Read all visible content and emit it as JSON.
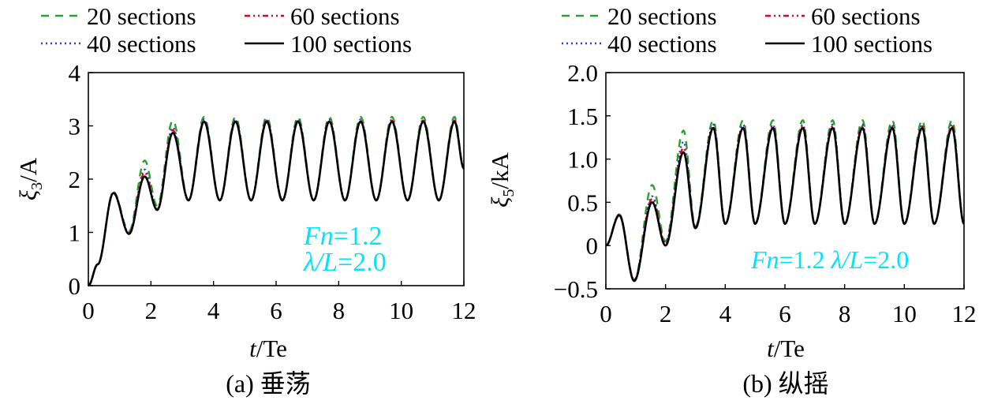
{
  "legend": [
    {
      "label": "20 sections",
      "color": "#2ca02c",
      "dash": "10,8"
    },
    {
      "label": "60 sections",
      "color": "#e8001c",
      "dash": "7,4,2,4,2,4"
    },
    {
      "label": "40 sections",
      "color": "#1f3fd8",
      "dash": "2,4"
    },
    {
      "label": "100 sections",
      "color": "#000000",
      "dash": ""
    }
  ],
  "annotation_color": "#00e5ff",
  "chart_data": [
    {
      "type": "line",
      "caption": "(a) 垂荡",
      "xlabel_italic": "t",
      "xlabel_rest": "/Te",
      "ylabel_sym": "ξ",
      "ylabel_sub": "3",
      "ylabel_rest": "/A",
      "xlim": [
        0,
        12
      ],
      "ylim": [
        0,
        4
      ],
      "xticks": [
        "0",
        "2",
        "4",
        "6",
        "8",
        "10",
        "12"
      ],
      "yticks": [
        "0",
        "1",
        "2",
        "3",
        "4"
      ],
      "annotation_lines": [
        [
          {
            "t": "Fn",
            "i": true
          },
          {
            "t": "=1.2",
            "i": false
          }
        ],
        [
          {
            "t": "λ/L",
            "i": true
          },
          {
            "t": "=2.0",
            "i": false
          }
        ]
      ],
      "series": [
        {
          "name": "20 sections",
          "x": [
            0,
            0.3,
            0.8,
            1.3,
            1.8,
            2.2,
            2.7,
            3.2,
            3.7,
            4.2,
            4.7,
            5.2,
            5.7,
            6.2,
            6.7,
            7.2,
            7.7,
            8.2,
            8.7,
            9.2,
            9.7,
            10.2,
            10.7,
            11.2,
            11.7,
            12
          ],
          "y": [
            0,
            0.4,
            1.76,
            1.02,
            2.35,
            1.5,
            3.1,
            1.6,
            3.17,
            1.6,
            3.17,
            1.6,
            3.17,
            1.6,
            3.17,
            1.6,
            3.17,
            1.6,
            3.17,
            1.6,
            3.17,
            1.6,
            3.17,
            1.6,
            3.17,
            2.2
          ]
        },
        {
          "name": "40 sections",
          "x": [
            0,
            0.3,
            0.8,
            1.3,
            1.8,
            2.2,
            2.7,
            3.2,
            3.7,
            4.2,
            4.7,
            5.2,
            5.7,
            6.2,
            6.7,
            7.2,
            7.7,
            8.2,
            8.7,
            9.2,
            9.7,
            10.2,
            10.7,
            11.2,
            11.7,
            12
          ],
          "y": [
            0,
            0.4,
            1.75,
            0.99,
            2.18,
            1.44,
            2.97,
            1.6,
            3.12,
            1.6,
            3.12,
            1.6,
            3.12,
            1.6,
            3.12,
            1.6,
            3.12,
            1.6,
            3.12,
            1.6,
            3.12,
            1.6,
            3.12,
            1.6,
            3.12,
            2.2
          ]
        },
        {
          "name": "60 sections",
          "x": [
            0,
            0.3,
            0.8,
            1.3,
            1.8,
            2.2,
            2.7,
            3.2,
            3.7,
            4.2,
            4.7,
            5.2,
            5.7,
            6.2,
            6.7,
            7.2,
            7.7,
            8.2,
            8.7,
            9.2,
            9.7,
            10.2,
            10.7,
            11.2,
            11.7,
            12
          ],
          "y": [
            0,
            0.4,
            1.75,
            0.98,
            2.12,
            1.43,
            2.92,
            1.6,
            3.1,
            1.6,
            3.1,
            1.6,
            3.1,
            1.6,
            3.1,
            1.6,
            3.1,
            1.6,
            3.1,
            1.6,
            3.1,
            1.6,
            3.1,
            1.6,
            3.1,
            2.2
          ]
        },
        {
          "name": "100 sections",
          "x": [
            0,
            0.3,
            0.8,
            1.3,
            1.8,
            2.2,
            2.7,
            3.2,
            3.7,
            4.2,
            4.7,
            5.2,
            5.7,
            6.2,
            6.7,
            7.2,
            7.7,
            8.2,
            8.7,
            9.2,
            9.7,
            10.2,
            10.7,
            11.2,
            11.7,
            12
          ],
          "y": [
            0,
            0.4,
            1.74,
            0.97,
            2.05,
            1.42,
            2.87,
            1.6,
            3.08,
            1.6,
            3.08,
            1.6,
            3.08,
            1.6,
            3.08,
            1.6,
            3.08,
            1.6,
            3.08,
            1.6,
            3.08,
            1.6,
            3.08,
            1.6,
            3.08,
            2.2
          ]
        }
      ]
    },
    {
      "type": "line",
      "caption": "(b) 纵摇",
      "xlabel_italic": "t",
      "xlabel_rest": "/Te",
      "ylabel_sym": "ξ",
      "ylabel_sub": "5",
      "ylabel_rest": "/kA",
      "xlim": [
        0,
        12
      ],
      "ylim": [
        -0.5,
        2.0
      ],
      "xticks": [
        "0",
        "2",
        "4",
        "6",
        "8",
        "10",
        "12"
      ],
      "yticks": [
        "−0.5",
        "0",
        "0.5",
        "1.0",
        "1.5",
        "2.0"
      ],
      "annotation_lines": [
        [
          {
            "t": "Fn",
            "i": true
          },
          {
            "t": "=1.2  ",
            "i": false
          },
          {
            "t": "λ/L",
            "i": true
          },
          {
            "t": "=2.0",
            "i": false
          }
        ]
      ],
      "series": [
        {
          "name": "20 sections",
          "x": [
            0,
            0.45,
            0.95,
            1.55,
            2.0,
            2.6,
            3.0,
            3.6,
            4.0,
            4.6,
            5.0,
            5.6,
            6.0,
            6.6,
            7.0,
            7.6,
            8.0,
            8.6,
            9.0,
            9.6,
            10.0,
            10.6,
            11.0,
            11.6,
            12
          ],
          "y": [
            0,
            0.36,
            -0.4,
            0.7,
            0.05,
            1.33,
            0.22,
            1.45,
            0.25,
            1.45,
            0.25,
            1.45,
            0.25,
            1.45,
            0.25,
            1.45,
            0.25,
            1.45,
            0.25,
            1.45,
            0.25,
            1.45,
            0.25,
            1.45,
            0.25
          ]
        },
        {
          "name": "40 sections",
          "x": [
            0,
            0.45,
            0.95,
            1.55,
            2.0,
            2.6,
            3.0,
            3.6,
            4.0,
            4.6,
            5.0,
            5.6,
            6.0,
            6.6,
            7.0,
            7.6,
            8.0,
            8.6,
            9.0,
            9.6,
            10.0,
            10.6,
            11.0,
            11.6,
            12
          ],
          "y": [
            0,
            0.36,
            -0.4,
            0.57,
            0.03,
            1.2,
            0.21,
            1.4,
            0.25,
            1.4,
            0.25,
            1.4,
            0.25,
            1.4,
            0.25,
            1.4,
            0.25,
            1.4,
            0.25,
            1.4,
            0.25,
            1.4,
            0.25,
            1.4,
            0.25
          ]
        },
        {
          "name": "60 sections",
          "x": [
            0,
            0.45,
            0.95,
            1.55,
            2.0,
            2.6,
            3.0,
            3.6,
            4.0,
            4.6,
            5.0,
            5.6,
            6.0,
            6.6,
            7.0,
            7.6,
            8.0,
            8.6,
            9.0,
            9.6,
            10.0,
            10.6,
            11.0,
            11.6,
            12
          ],
          "y": [
            0,
            0.36,
            -0.4,
            0.54,
            0.02,
            1.13,
            0.2,
            1.38,
            0.25,
            1.38,
            0.25,
            1.38,
            0.25,
            1.38,
            0.25,
            1.38,
            0.25,
            1.38,
            0.25,
            1.38,
            0.25,
            1.38,
            0.25,
            1.38,
            0.25
          ]
        },
        {
          "name": "100 sections",
          "x": [
            0,
            0.45,
            0.95,
            1.55,
            2.0,
            2.6,
            3.0,
            3.6,
            4.0,
            4.6,
            5.0,
            5.6,
            6.0,
            6.6,
            7.0,
            7.6,
            8.0,
            8.6,
            9.0,
            9.6,
            10.0,
            10.6,
            11.0,
            11.6,
            12
          ],
          "y": [
            0,
            0.35,
            -0.41,
            0.5,
            0.0,
            1.08,
            0.2,
            1.36,
            0.25,
            1.36,
            0.25,
            1.36,
            0.25,
            1.36,
            0.25,
            1.36,
            0.25,
            1.36,
            0.25,
            1.36,
            0.25,
            1.36,
            0.25,
            1.36,
            0.25
          ]
        }
      ]
    }
  ]
}
